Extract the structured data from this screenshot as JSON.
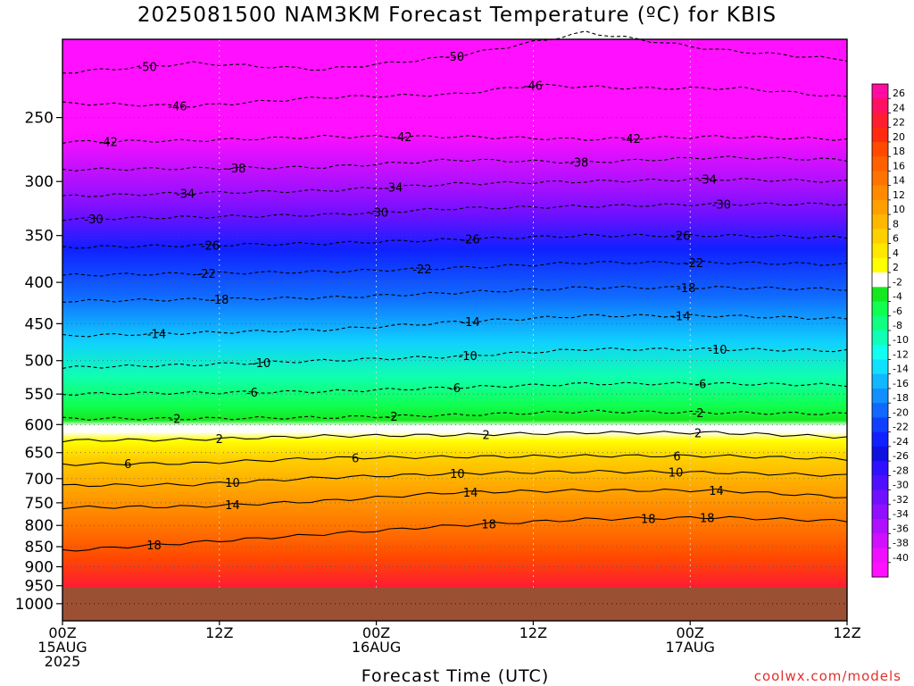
{
  "title": "2025081500 NAM3KM Forecast Temperature (ºC) for KBIS",
  "credit": "coolwx.com/models",
  "chart_data": {
    "type": "heatmap",
    "title": "2025081500 NAM3KM Forecast Temperature (ºC) for KBIS",
    "xlabel": "Forecast Time (UTC)",
    "ylabel": "",
    "y_axis": {
      "scale": "log",
      "reversed": true,
      "range": [
        1050,
        200
      ],
      "ticks": [
        250,
        300,
        350,
        400,
        450,
        500,
        550,
        600,
        650,
        700,
        750,
        800,
        850,
        900,
        950,
        1000
      ]
    },
    "x_axis": {
      "range_hours": [
        0,
        60
      ],
      "ticks": [
        {
          "hour": 0,
          "lines": [
            "00Z",
            "15AUG",
            "2025"
          ]
        },
        {
          "hour": 12,
          "lines": [
            "12Z"
          ]
        },
        {
          "hour": 24,
          "lines": [
            "00Z",
            "16AUG"
          ]
        },
        {
          "hour": 36,
          "lines": [
            "12Z"
          ]
        },
        {
          "hour": 48,
          "lines": [
            "00Z",
            "17AUG"
          ]
        },
        {
          "hour": 60,
          "lines": [
            "12Z"
          ]
        }
      ]
    },
    "grid": true,
    "ground_pressure_hpa": 955,
    "ground_color": "#9b5034",
    "colorbar": {
      "labels": [
        "26",
        "24",
        "22",
        "20",
        "18",
        "16",
        "14",
        "12",
        "10",
        "8",
        "6",
        "4",
        "2",
        "-2",
        "-4",
        "-6",
        "-8",
        "-10",
        "-12",
        "-14",
        "-16",
        "-18",
        "-20",
        "-22",
        "-24",
        "-26",
        "-28",
        "-30",
        "-32",
        "-34",
        "-36",
        "-38",
        "-40"
      ],
      "colors": [
        "#ff0ca0",
        "#ff1060",
        "#ff1e30",
        "#ff2a10",
        "#ff4a00",
        "#ff6000",
        "#ff7400",
        "#ff8a00",
        "#ffa000",
        "#ffb800",
        "#ffd000",
        "#ffe800",
        "#ffff00",
        "#ffffff",
        "#14e81e",
        "#10ff50",
        "#10ff80",
        "#10ffb8",
        "#10fff0",
        "#10e0ff",
        "#10b8ff",
        "#1090ff",
        "#1068ff",
        "#1040ff",
        "#1020ff",
        "#1010e0",
        "#3010ff",
        "#5010ff",
        "#7010ff",
        "#9010ff",
        "#b010ff",
        "#d010ff",
        "#f010ff",
        "#ff10ff"
      ]
    },
    "isotherms": [
      {
        "value": -50,
        "dashed": true,
        "points": [
          [
            0,
            220
          ],
          [
            10,
            214
          ],
          [
            20,
            218
          ],
          [
            30,
            210
          ],
          [
            40,
            196
          ],
          [
            50,
            206
          ],
          [
            60,
            212
          ]
        ],
        "labels": [
          {
            "hour": 6.5,
            "text": "-50"
          },
          {
            "hour": 30,
            "text": "-50"
          }
        ]
      },
      {
        "value": -46,
        "dashed": true,
        "points": [
          [
            0,
            240
          ],
          [
            10,
            242
          ],
          [
            20,
            236
          ],
          [
            30,
            234
          ],
          [
            36,
            228
          ],
          [
            44,
            230
          ],
          [
            52,
            230
          ],
          [
            60,
            236
          ]
        ],
        "labels": [
          {
            "hour": 8.8,
            "text": "-46"
          },
          {
            "hour": 36,
            "text": "-46"
          }
        ]
      },
      {
        "value": -42,
        "dashed": true,
        "points": [
          [
            0,
            268
          ],
          [
            10,
            267
          ],
          [
            20,
            264
          ],
          [
            30,
            264
          ],
          [
            40,
            266
          ],
          [
            50,
            264
          ],
          [
            60,
            266
          ]
        ],
        "labels": [
          {
            "hour": 3.5,
            "text": "-42"
          },
          {
            "hour": 26,
            "text": "-42"
          },
          {
            "hour": 43.5,
            "text": "-42"
          }
        ]
      },
      {
        "value": -38,
        "dashed": true,
        "points": [
          [
            0,
            290
          ],
          [
            10,
            289
          ],
          [
            20,
            288
          ],
          [
            30,
            282
          ],
          [
            40,
            284
          ],
          [
            50,
            280
          ],
          [
            60,
            282
          ]
        ],
        "labels": [
          {
            "hour": 13.3,
            "text": "-38"
          },
          {
            "hour": 39.5,
            "text": "-38"
          }
        ]
      },
      {
        "value": -34,
        "dashed": true,
        "points": [
          [
            0,
            313
          ],
          [
            10,
            310
          ],
          [
            20,
            308
          ],
          [
            30,
            302
          ],
          [
            40,
            300
          ],
          [
            50,
            298
          ],
          [
            60,
            300
          ]
        ],
        "labels": [
          {
            "hour": 9.4,
            "text": "-34"
          },
          {
            "hour": 25.3,
            "text": "-34"
          },
          {
            "hour": 49.3,
            "text": "-34"
          }
        ]
      },
      {
        "value": -30,
        "dashed": true,
        "points": [
          [
            0,
            334
          ],
          [
            10,
            332
          ],
          [
            20,
            330
          ],
          [
            30,
            324
          ],
          [
            40,
            322
          ],
          [
            50,
            320
          ],
          [
            60,
            320
          ]
        ],
        "labels": [
          {
            "hour": 2.4,
            "text": "-30"
          },
          {
            "hour": 24.2,
            "text": "-30"
          },
          {
            "hour": 50.4,
            "text": "-30"
          }
        ]
      },
      {
        "value": -26,
        "dashed": true,
        "points": [
          [
            0,
            362
          ],
          [
            10,
            360
          ],
          [
            20,
            358
          ],
          [
            30,
            354
          ],
          [
            40,
            350
          ],
          [
            50,
            350
          ],
          [
            60,
            352
          ]
        ],
        "labels": [
          {
            "hour": 11.3,
            "text": "-26"
          },
          {
            "hour": 31.2,
            "text": "-26"
          },
          {
            "hour": 47.3,
            "text": "-26"
          }
        ]
      },
      {
        "value": -22,
        "dashed": true,
        "points": [
          [
            0,
            392
          ],
          [
            10,
            390
          ],
          [
            20,
            388
          ],
          [
            30,
            384
          ],
          [
            40,
            378
          ],
          [
            50,
            378
          ],
          [
            60,
            380
          ]
        ],
        "labels": [
          {
            "hour": 11,
            "text": "-22"
          },
          {
            "hour": 27.5,
            "text": "-22"
          },
          {
            "hour": 48.3,
            "text": "-22"
          }
        ]
      },
      {
        "value": -18,
        "dashed": true,
        "points": [
          [
            0,
            422
          ],
          [
            10,
            420
          ],
          [
            20,
            418
          ],
          [
            30,
            412
          ],
          [
            40,
            406
          ],
          [
            50,
            406
          ],
          [
            60,
            408
          ]
        ],
        "labels": [
          {
            "hour": 12,
            "text": "-18"
          },
          {
            "hour": 47.7,
            "text": "-18"
          }
        ]
      },
      {
        "value": -14,
        "dashed": true,
        "points": [
          [
            0,
            466
          ],
          [
            10,
            462
          ],
          [
            20,
            458
          ],
          [
            30,
            448
          ],
          [
            40,
            440
          ],
          [
            50,
            440
          ],
          [
            60,
            444
          ]
        ],
        "labels": [
          {
            "hour": 7.2,
            "text": "-14"
          },
          {
            "hour": 31.2,
            "text": "-14"
          },
          {
            "hour": 47.3,
            "text": "-14"
          }
        ]
      },
      {
        "value": -10,
        "dashed": true,
        "points": [
          [
            0,
            510
          ],
          [
            10,
            506
          ],
          [
            20,
            500
          ],
          [
            30,
            494
          ],
          [
            40,
            484
          ],
          [
            50,
            484
          ],
          [
            60,
            486
          ]
        ],
        "labels": [
          {
            "hour": 15.2,
            "text": "-10"
          },
          {
            "hour": 31,
            "text": "-10"
          },
          {
            "hour": 50.1,
            "text": "-10"
          }
        ]
      },
      {
        "value": -6,
        "dashed": true,
        "points": [
          [
            0,
            550
          ],
          [
            10,
            548
          ],
          [
            20,
            546
          ],
          [
            30,
            540
          ],
          [
            40,
            534
          ],
          [
            50,
            534
          ],
          [
            60,
            536
          ]
        ],
        "labels": [
          {
            "hour": 14.5,
            "text": "-6"
          },
          {
            "hour": 30,
            "text": "-6"
          },
          {
            "hour": 48.8,
            "text": "-6"
          }
        ]
      },
      {
        "value": -2,
        "dashed": true,
        "points": [
          [
            0,
            590
          ],
          [
            10,
            590
          ],
          [
            20,
            588
          ],
          [
            30,
            584
          ],
          [
            40,
            578
          ],
          [
            50,
            580
          ],
          [
            60,
            582
          ]
        ],
        "labels": [
          {
            "hour": 8.6,
            "text": "-2"
          },
          {
            "hour": 25.2,
            "text": "-2"
          },
          {
            "hour": 48.6,
            "text": "-2"
          }
        ]
      },
      {
        "value": 2,
        "dashed": false,
        "points": [
          [
            0,
            628
          ],
          [
            10,
            626
          ],
          [
            20,
            620
          ],
          [
            30,
            618
          ],
          [
            40,
            614
          ],
          [
            50,
            614
          ],
          [
            60,
            622
          ]
        ],
        "labels": [
          {
            "hour": 12,
            "text": "2"
          },
          {
            "hour": 32.4,
            "text": "2"
          },
          {
            "hour": 48.6,
            "text": "2"
          }
        ]
      },
      {
        "value": 6,
        "dashed": false,
        "points": [
          [
            0,
            672
          ],
          [
            10,
            670
          ],
          [
            20,
            660
          ],
          [
            30,
            658
          ],
          [
            40,
            656
          ],
          [
            50,
            656
          ],
          [
            60,
            662
          ]
        ],
        "labels": [
          {
            "hour": 5,
            "text": "6"
          },
          {
            "hour": 22.4,
            "text": "6"
          },
          {
            "hour": 47,
            "text": "6"
          }
        ]
      },
      {
        "value": 10,
        "dashed": false,
        "points": [
          [
            0,
            714
          ],
          [
            10,
            712
          ],
          [
            20,
            698
          ],
          [
            30,
            690
          ],
          [
            40,
            686
          ],
          [
            50,
            688
          ],
          [
            60,
            694
          ]
        ],
        "labels": [
          {
            "hour": 13,
            "text": "10"
          },
          {
            "hour": 30.2,
            "text": "10"
          },
          {
            "hour": 46.9,
            "text": "10"
          }
        ]
      },
      {
        "value": 14,
        "dashed": false,
        "points": [
          [
            0,
            760
          ],
          [
            10,
            758
          ],
          [
            20,
            746
          ],
          [
            30,
            728
          ],
          [
            40,
            724
          ],
          [
            50,
            724
          ],
          [
            60,
            738
          ]
        ],
        "labels": [
          {
            "hour": 13,
            "text": "14"
          },
          {
            "hour": 31.2,
            "text": "14"
          },
          {
            "hour": 50,
            "text": "14"
          }
        ]
      },
      {
        "value": 18,
        "dashed": false,
        "points": [
          [
            0,
            860
          ],
          [
            10,
            840
          ],
          [
            20,
            820
          ],
          [
            30,
            800
          ],
          [
            40,
            786
          ],
          [
            50,
            782
          ],
          [
            60,
            790
          ]
        ],
        "labels": [
          {
            "hour": 7,
            "text": "18"
          },
          {
            "hour": 32.6,
            "text": "18"
          },
          {
            "hour": 44.8,
            "text": "18"
          },
          {
            "hour": 49.3,
            "text": "18"
          }
        ]
      }
    ]
  }
}
